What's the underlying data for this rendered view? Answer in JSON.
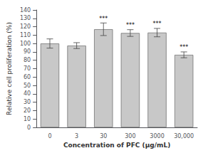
{
  "chart_data": {
    "type": "bar",
    "categories": [
      "0",
      "3",
      "30",
      "300",
      "3000",
      "30,000"
    ],
    "values": [
      100.0,
      97.5,
      117.0,
      112.5,
      113.0,
      86.5
    ],
    "errors": [
      5.5,
      3.5,
      7.5,
      4.0,
      5.0,
      3.5
    ],
    "annotations": [
      null,
      null,
      "***",
      "***",
      "***",
      "***"
    ],
    "color": "#c8c8c8",
    "ylabel": "Relative cell proliferation (%)",
    "xlabel": "Concentration of PFC (μg/mL)",
    "ylim": [
      0,
      140
    ],
    "yticks": [
      0,
      10,
      20,
      30,
      40,
      50,
      60,
      70,
      80,
      90,
      100,
      110,
      120,
      130,
      140
    ],
    "grid": false
  }
}
